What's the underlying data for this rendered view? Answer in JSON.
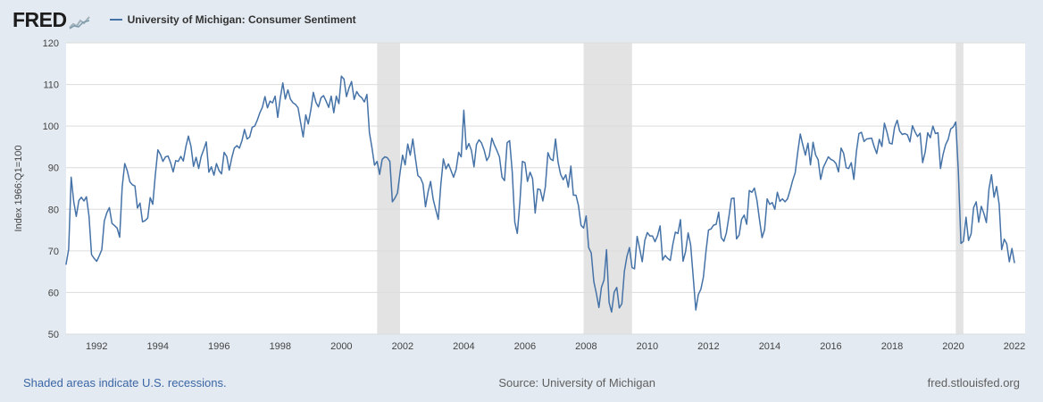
{
  "header": {
    "logo_text": "FRED",
    "legend_label": "University of Michigan: Consumer Sentiment"
  },
  "footer": {
    "recession_note": "Shaded areas indicate U.S. recessions.",
    "source": "Source: University of Michigan",
    "site": "fred.stlouisfed.org"
  },
  "colors": {
    "frame_background": "#e3eaf1",
    "plot_background": "#ffffff",
    "line": "#4572a7",
    "recession_band": "#e3e3e3",
    "gridline": "#dcdcdc",
    "link_blue": "#3b66a5"
  },
  "chart_data": {
    "type": "line",
    "title": "University of Michigan: Consumer Sentiment",
    "xlabel": "",
    "ylabel": "Index 1966:Q1=100",
    "ylim": [
      50,
      120
    ],
    "xlim": [
      1991.0,
      2022.35
    ],
    "y_ticks": [
      50,
      60,
      70,
      80,
      90,
      100,
      110,
      120
    ],
    "x_ticks": [
      1992,
      1994,
      1996,
      1998,
      2000,
      2002,
      2004,
      2006,
      2008,
      2010,
      2012,
      2014,
      2016,
      2018,
      2020,
      2022
    ],
    "grid": "horizontal",
    "legend_position": "top-left",
    "line_color": "#4572a7",
    "recession_color": "#e3e3e3",
    "recession_bands": [
      [
        2001.167,
        2001.917
      ],
      [
        2007.917,
        2009.5
      ],
      [
        2020.083,
        2020.333
      ]
    ],
    "series": [
      {
        "name": "University of Michigan: Consumer Sentiment",
        "frequency": "monthly",
        "start_year": 1991,
        "start_month": 1,
        "values": [
          66.8,
          70.4,
          87.7,
          81.8,
          78.3,
          82.1,
          82.9,
          82.0,
          83.0,
          78.3,
          69.1,
          68.2,
          67.5,
          68.8,
          70.3,
          77.2,
          79.2,
          80.4,
          76.6,
          76.1,
          75.5,
          73.3,
          85.3,
          91.0,
          89.3,
          86.6,
          85.9,
          85.6,
          80.3,
          81.5,
          77.0,
          77.3,
          77.9,
          82.8,
          81.2,
          88.2,
          94.3,
          93.2,
          91.5,
          92.6,
          92.8,
          91.2,
          89.0,
          91.7,
          91.5,
          92.7,
          91.6,
          95.1,
          97.6,
          95.1,
          90.3,
          92.5,
          89.8,
          92.7,
          94.4,
          96.2,
          88.9,
          90.2,
          88.2,
          91.0,
          89.3,
          88.5,
          93.7,
          92.7,
          89.4,
          92.4,
          94.7,
          95.3,
          94.7,
          96.5,
          99.2,
          96.9,
          97.4,
          99.7,
          100.0,
          101.4,
          103.2,
          104.5,
          107.1,
          104.4,
          106.0,
          105.6,
          107.2,
          102.1,
          106.6,
          110.4,
          106.5,
          108.7,
          106.5,
          105.6,
          105.2,
          104.4,
          100.9,
          97.4,
          102.7,
          100.5,
          103.9,
          108.1,
          105.7,
          104.6,
          106.8,
          107.3,
          106.0,
          104.5,
          107.2,
          103.2,
          107.2,
          105.4,
          112.0,
          111.3,
          107.1,
          109.2,
          110.7,
          106.4,
          108.3,
          107.3,
          106.8,
          105.8,
          107.6,
          98.4,
          94.7,
          90.6,
          91.5,
          88.4,
          92.0,
          92.6,
          92.4,
          91.5,
          81.8,
          82.7,
          83.9,
          88.8,
          93.0,
          90.7,
          95.7,
          93.0,
          96.9,
          92.4,
          88.1,
          87.6,
          86.1,
          80.6,
          84.2,
          86.7,
          82.4,
          79.9,
          77.6,
          86.0,
          92.1,
          89.7,
          90.9,
          89.3,
          87.7,
          89.6,
          93.7,
          92.6,
          103.8,
          94.4,
          95.8,
          94.2,
          90.2,
          95.6,
          96.7,
          95.9,
          94.2,
          91.7,
          92.8,
          97.1,
          95.5,
          94.1,
          92.6,
          87.7,
          86.9,
          96.0,
          96.5,
          89.1,
          76.9,
          74.2,
          81.6,
          91.5,
          91.2,
          86.7,
          88.9,
          87.4,
          79.1,
          84.9,
          84.7,
          82.0,
          85.4,
          93.6,
          92.1,
          91.7,
          96.9,
          91.3,
          88.4,
          87.1,
          88.3,
          85.3,
          90.4,
          83.4,
          83.4,
          80.9,
          76.1,
          75.5,
          78.4,
          70.8,
          69.5,
          62.6,
          59.8,
          56.4,
          61.2,
          63.0,
          70.3,
          57.6,
          55.3,
          60.1,
          61.2,
          56.3,
          57.3,
          65.1,
          68.7,
          70.8,
          66.0,
          65.7,
          73.5,
          70.6,
          67.4,
          72.5,
          74.4,
          73.6,
          73.6,
          72.2,
          73.6,
          76.0,
          67.8,
          68.9,
          68.2,
          67.7,
          71.6,
          74.5,
          74.2,
          77.5,
          67.5,
          69.8,
          74.3,
          71.5,
          63.7,
          55.8,
          59.5,
          60.8,
          63.7,
          69.9,
          75.0,
          75.3,
          76.2,
          76.4,
          79.3,
          73.2,
          72.3,
          74.3,
          78.3,
          82.6,
          82.7,
          72.9,
          73.8,
          77.6,
          78.6,
          76.4,
          84.5,
          84.1,
          85.1,
          82.1,
          77.5,
          73.2,
          75.1,
          82.5,
          81.2,
          81.6,
          80.0,
          84.1,
          81.9,
          82.5,
          81.8,
          82.5,
          84.6,
          86.9,
          88.8,
          93.6,
          98.1,
          95.4,
          93.0,
          95.9,
          90.7,
          96.1,
          93.1,
          91.9,
          87.2,
          90.0,
          91.3,
          92.6,
          92.0,
          91.7,
          91.0,
          89.0,
          94.7,
          93.5,
          90.0,
          89.8,
          91.2,
          87.2,
          93.8,
          98.2,
          98.5,
          96.3,
          96.9,
          97.0,
          97.1,
          95.0,
          93.4,
          96.8,
          95.1,
          100.7,
          98.5,
          95.9,
          95.7,
          99.7,
          101.4,
          98.8,
          98.0,
          98.2,
          97.9,
          96.2,
          100.1,
          98.6,
          97.5,
          98.3,
          91.2,
          93.8,
          98.4,
          97.2,
          100.0,
          98.2,
          98.4,
          89.8,
          93.2,
          95.5,
          96.8,
          99.3,
          99.8,
          101.0,
          89.1,
          71.8,
          72.3,
          78.1,
          72.5,
          74.1,
          80.4,
          81.8,
          76.9,
          80.7,
          79.0,
          76.8,
          84.9,
          88.3,
          82.9,
          85.5,
          81.2,
          70.3,
          72.8,
          71.7,
          67.4,
          70.6,
          67.2
        ]
      }
    ]
  }
}
